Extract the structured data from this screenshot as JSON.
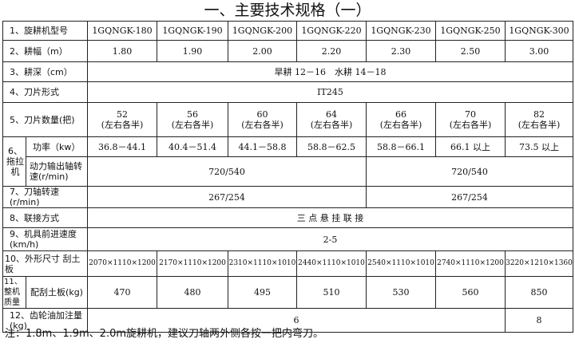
{
  "title": "一、主要技术规格（一）",
  "rows": {
    "r1": {
      "label": "1、旋耕机型号",
      "values": [
        "1GQNGK-180",
        "1GQNGK-190",
        "1GQNGK-200",
        "1GQNGK-220",
        "1GQNGK-230",
        "1GQNGK-250",
        "1GQNGK-300"
      ]
    },
    "r2": {
      "label": "2、耕幅（m）",
      "values": [
        "1.80",
        "1.90",
        "2.00",
        "2.20",
        "2.30",
        "2.50",
        "3.00"
      ]
    },
    "r3": {
      "label": "3、耕深（cm）",
      "value": "旱耕 12－16　水耕 14－18"
    },
    "r4": {
      "label": "4、刀片形式",
      "value": "IT245"
    },
    "r5": {
      "label": "5、刀片数量(把)",
      "values": [
        "52",
        "56",
        "60",
        "64",
        "66",
        "70",
        "82"
      ],
      "note": "(左右各半)"
    },
    "r6": {
      "label": "6、拖拉机",
      "power_label": "功率（kw）",
      "power": [
        "36.8－44.1",
        "40.4－51.4",
        "44.1－58.8",
        "58.8－62.5",
        "58.8－66.1",
        "66.1 以上",
        "73.5 以上"
      ],
      "pto_label": "动力输出轴转速(r/min)",
      "pto": [
        "720/540",
        "720/540"
      ]
    },
    "r7": {
      "label": "7、刀轴转速(r/min)",
      "values": [
        "267/254",
        "267/254"
      ]
    },
    "r8": {
      "label": "8、联接方式",
      "value": "三 点 悬 挂 联 接"
    },
    "r9": {
      "label": "9、机具前进速度(km/h)",
      "value": "2-5"
    },
    "r10": {
      "label": "10、外形尺寸 刮土板",
      "values": [
        "2070×1110×1200",
        "2170×1110×1200",
        "2310×1110×1010",
        "2440×1110×1010",
        "2540×1110×1010",
        "2740×1110×1200",
        "3220×1210×1360"
      ]
    },
    "r11": {
      "label": "11、整机质量",
      "sub_label": "配刮土板(kg)",
      "values": [
        "470",
        "480",
        "495",
        "510",
        "530",
        "560",
        "850"
      ]
    },
    "r12": {
      "label": "12、齿轮油加注量(kg)",
      "values": [
        "6",
        "8"
      ]
    }
  },
  "note": "注：1.8m、1.9m、2.0m旋耕机，建议刀轴两外侧各按一把内弯刀。"
}
